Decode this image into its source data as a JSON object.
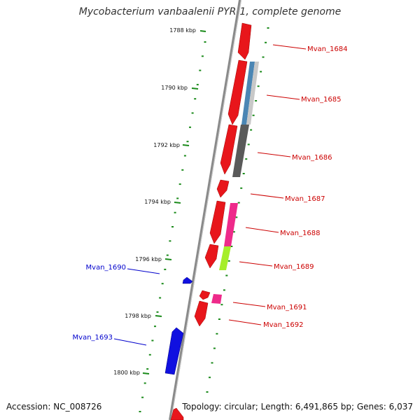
{
  "title": "Mycobacterium vanbaalenii PYR-1, complete genome",
  "footer": {
    "accession": "Accession: NC_008726",
    "summary": "Topology: circular; Length: 6,491,865 bp; Genes: 6,037"
  },
  "colors": {
    "forward_gene": "#e8161b",
    "reverse_gene": "#1010e0",
    "backbone": "#8a8a8a",
    "tick_marks": "#1a8a1a",
    "forward_label": "#cc0000",
    "reverse_label": "#0000cc",
    "cog_blue": "#4b86b4",
    "cog_lightgray": "#c8c8c8",
    "cog_darkgray": "#5a5a5a",
    "cog_magenta": "#ee2a8a",
    "cog_green": "#a6ee2a"
  },
  "kbp_ticks": [
    {
      "label": "1788 kbp"
    },
    {
      "label": "1790 kbp"
    },
    {
      "label": "1792 kbp"
    },
    {
      "label": "1794 kbp"
    },
    {
      "label": "1796 kbp"
    },
    {
      "label": "1798 kbp"
    },
    {
      "label": "1800 kbp"
    }
  ],
  "genes": [
    {
      "name": "Mvan_1684",
      "strand": "forward"
    },
    {
      "name": "Mvan_1685",
      "strand": "forward"
    },
    {
      "name": "Mvan_1686",
      "strand": "forward"
    },
    {
      "name": "Mvan_1687",
      "strand": "forward"
    },
    {
      "name": "Mvan_1688",
      "strand": "forward"
    },
    {
      "name": "Mvan_1689",
      "strand": "forward"
    },
    {
      "name": "Mvan_1690",
      "strand": "reverse"
    },
    {
      "name": "Mvan_1691",
      "strand": "forward"
    },
    {
      "name": "Mvan_1692",
      "strand": "forward"
    },
    {
      "name": "Mvan_1693",
      "strand": "reverse"
    }
  ]
}
